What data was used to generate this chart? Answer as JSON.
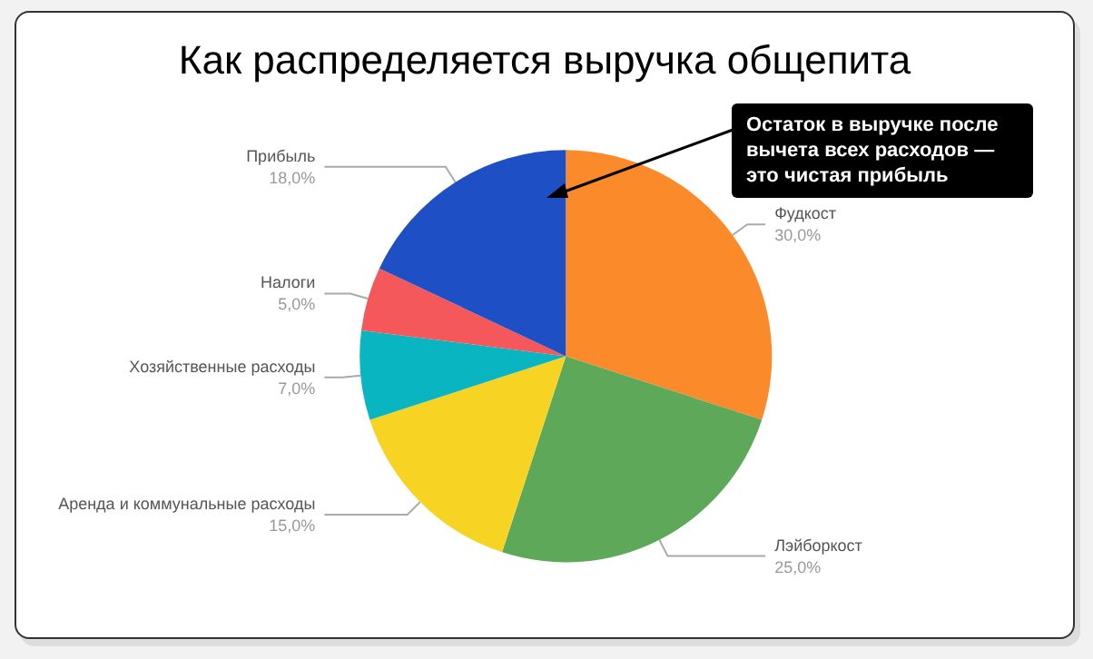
{
  "chart_data": {
    "type": "pie",
    "title": "Как распределяется выручка общепита",
    "categories": [
      "Фудкост",
      "Лэйборкост",
      "Аренда и коммунальные расходы",
      "Хозяйственные расходы",
      "Налоги",
      "Прибыль"
    ],
    "values": [
      30,
      25,
      15,
      7,
      5,
      18
    ],
    "value_labels": [
      "30,0%",
      "25,0%",
      "15,0%",
      "7,0%",
      "5,0%",
      "18,0%"
    ],
    "colors": [
      "#fb8a2a",
      "#5ea85a",
      "#f7d424",
      "#0ab5c2",
      "#f5585a",
      "#1f4fc5"
    ],
    "annotations": [
      "Остаток в выручке после вычета всех расходов — это чистая прибыль"
    ],
    "legend": false
  }
}
